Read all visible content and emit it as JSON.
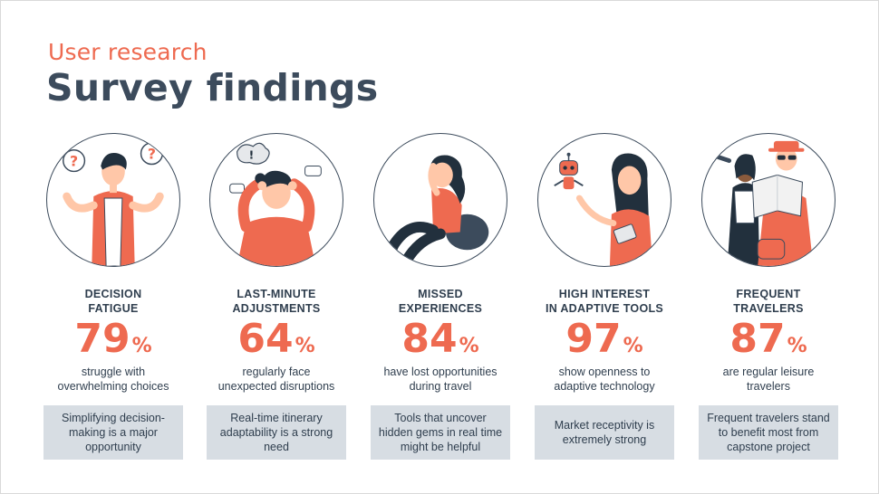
{
  "header": {
    "subtitle": "User research",
    "title": "Survey findings"
  },
  "colors": {
    "accent": "#ee6a50",
    "dark": "#3c4b5c",
    "box_bg": "#d7dde3"
  },
  "findings": [
    {
      "icon": "confused-person-illustration",
      "heading_line1": "DECISION",
      "heading_line2": "FATIGUE",
      "value": "79",
      "unit": "%",
      "desc_line1": "struggle with",
      "desc_line2": "overwhelming choices",
      "note": "Simplifying decision-making is a major opportunity"
    },
    {
      "icon": "stressed-person-illustration",
      "heading_line1": "LAST-MINUTE",
      "heading_line2": "ADJUSTMENTS",
      "value": "64",
      "unit": "%",
      "desc_line1": "regularly face",
      "desc_line2": "unexpected disruptions",
      "note": "Real-time itinerary adaptability is a strong need"
    },
    {
      "icon": "sad-sitting-person-illustration",
      "heading_line1": "MISSED",
      "heading_line2": "EXPERIENCES",
      "value": "84",
      "unit": "%",
      "desc_line1": "have lost opportunities",
      "desc_line2": "during travel",
      "note": "Tools that uncover hidden gems in real time might be helpful"
    },
    {
      "icon": "person-with-robot-illustration",
      "heading_line1": "HIGH INTEREST",
      "heading_line2": "IN ADAPTIVE TOOLS",
      "value": "97",
      "unit": "%",
      "desc_line1": "show openness to",
      "desc_line2": "adaptive technology",
      "note": "Market receptivity is extremely strong"
    },
    {
      "icon": "travelers-with-map-illustration",
      "heading_line1": "FREQUENT",
      "heading_line2": "TRAVELERS",
      "value": "87",
      "unit": "%",
      "desc_line1": "are regular leisure",
      "desc_line2": "travelers",
      "note": "Frequent travelers stand to benefit most from capstone project"
    }
  ]
}
